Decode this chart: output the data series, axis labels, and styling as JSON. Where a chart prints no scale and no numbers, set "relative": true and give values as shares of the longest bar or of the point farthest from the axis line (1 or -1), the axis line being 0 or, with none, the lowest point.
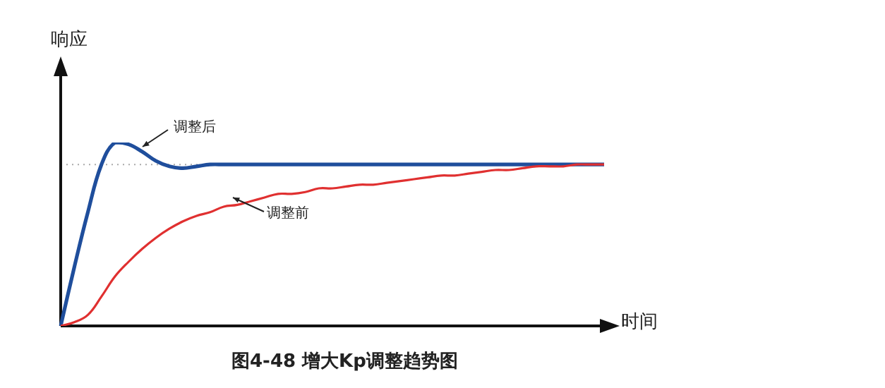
{
  "chart_data": {
    "type": "line",
    "title": "图4-48 增大Kp调整趋势图",
    "xlabel": "时间",
    "ylabel": "响应",
    "relative": true,
    "legend": false,
    "marker": "none",
    "line_style": "solid",
    "categories": [
      null,
      null,
      null,
      null,
      null,
      null,
      null,
      null,
      null,
      null,
      null,
      null,
      null,
      null,
      null,
      null,
      null,
      null,
      null,
      null,
      null,
      null,
      null,
      null,
      null,
      null,
      null,
      null,
      null,
      null,
      null,
      null,
      null,
      null,
      null,
      null,
      null,
      null,
      null,
      null,
      null
    ],
    "series": [
      {
        "color": "#1f4e9c",
        "values": [
          0,
          0.32,
          0.62,
          0.88,
          1,
          0.99,
          0.95,
          0.9,
          0.87,
          0.86,
          0.87,
          0.88,
          0.88,
          0.88,
          0.88,
          0.88,
          0.88,
          0.88,
          0.88,
          0.88,
          0.88,
          0.88,
          0.88,
          0.88,
          0.88,
          0.88,
          0.88,
          0.88,
          0.88,
          0.88,
          0.88,
          0.88,
          0.88,
          0.88,
          0.88,
          0.88,
          0.88,
          0.88,
          0.88,
          0.88,
          0.88
        ]
      },
      {
        "color": "#e03030",
        "values": [
          0,
          0.02,
          0.06,
          0.16,
          0.27,
          0.35,
          0.42,
          0.48,
          0.53,
          0.57,
          0.6,
          0.62,
          0.65,
          0.66,
          0.68,
          0.7,
          0.72,
          0.72,
          0.73,
          0.75,
          0.75,
          0.76,
          0.77,
          0.77,
          0.78,
          0.79,
          0.8,
          0.81,
          0.82,
          0.82,
          0.83,
          0.84,
          0.85,
          0.85,
          0.86,
          0.87,
          0.87,
          0.87,
          0.88,
          0.88,
          0.88
        ]
      }
    ],
    "ref_lines": [
      {
        "axis": "y",
        "value": 0.88,
        "color": "#aaaaaa",
        "line_style": "dotted"
      }
    ],
    "annotations": [
      "调整后",
      "调整前"
    ]
  }
}
